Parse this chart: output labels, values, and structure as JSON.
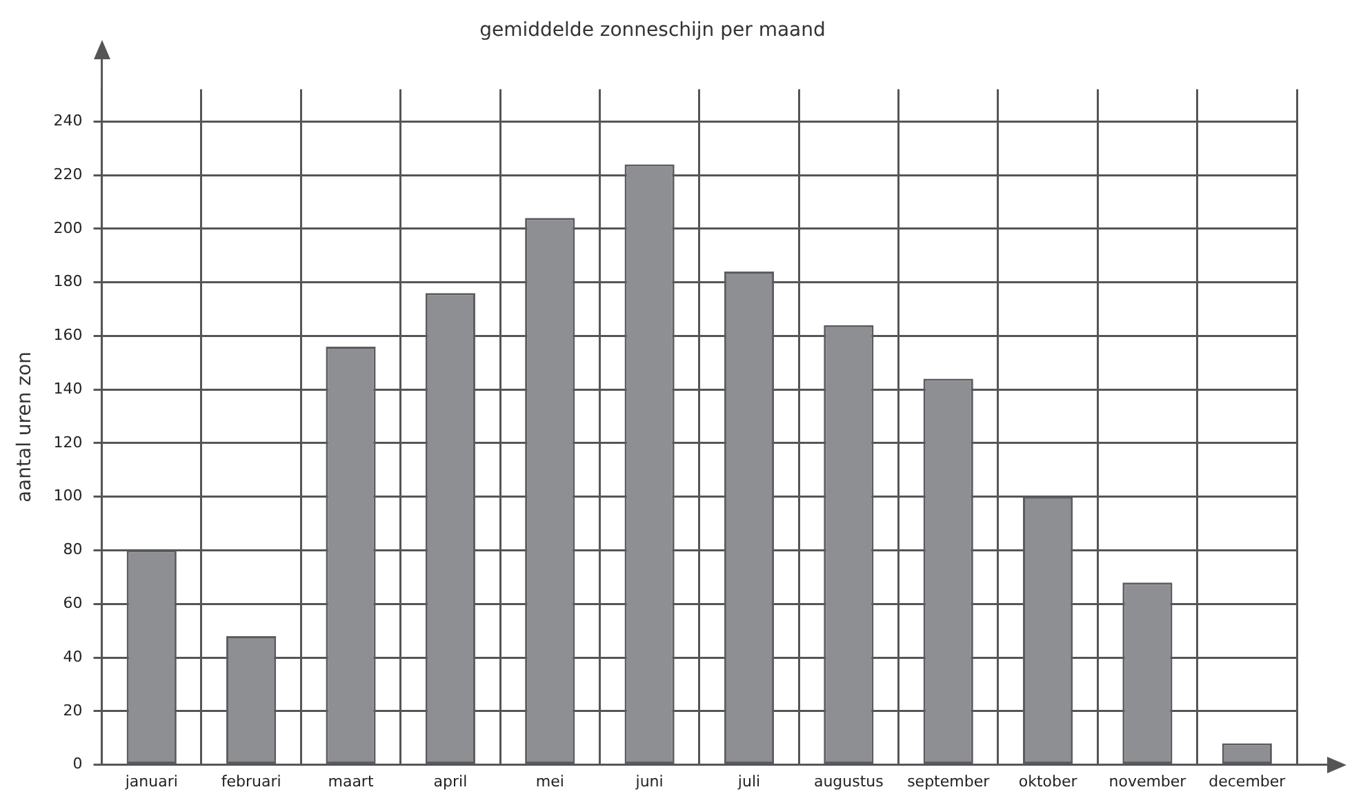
{
  "chart_data": {
    "type": "bar",
    "title": "gemiddelde zonneschijn per maand",
    "ylabel": "aantal uren zon",
    "categories": [
      "januari",
      "februari",
      "maart",
      "april",
      "mei",
      "juni",
      "juli",
      "augustus",
      "september",
      "oktober",
      "november",
      "december"
    ],
    "values": [
      80,
      48,
      156,
      176,
      204,
      224,
      184,
      164,
      144,
      100,
      68,
      8
    ],
    "color": "#8e8f93",
    "ylim": [
      0,
      252
    ],
    "yticks": [
      0,
      20,
      40,
      60,
      80,
      100,
      120,
      140,
      160,
      180,
      200,
      220,
      240
    ],
    "grid": true,
    "legend": false
  }
}
